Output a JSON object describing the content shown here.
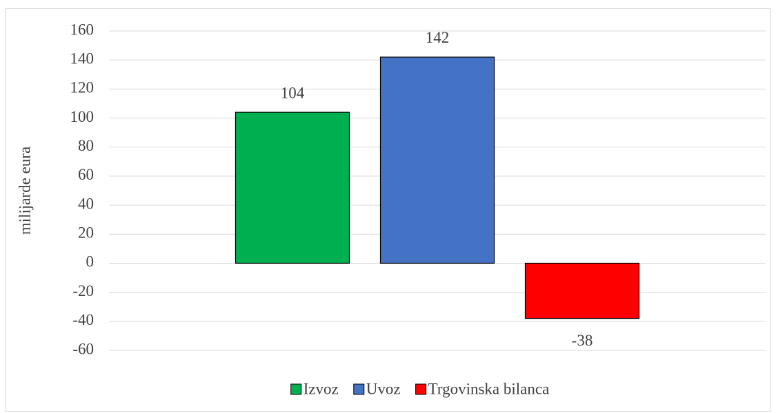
{
  "chart_data": {
    "type": "bar",
    "y_label": "milijarde eura",
    "categories": [
      null
    ],
    "series": [
      {
        "name": "Izvoz",
        "color": "#00b050",
        "values": [
          104
        ]
      },
      {
        "name": "Uvoz",
        "color": "#4472c4",
        "values": [
          142
        ]
      },
      {
        "name": "Trgovinska bilanca",
        "color": "#ff0000",
        "values": [
          -38
        ]
      }
    ],
    "ylim": [
      -60,
      160
    ],
    "yticks": [
      -60,
      -40,
      -20,
      0,
      20,
      40,
      60,
      80,
      100,
      120,
      140,
      160
    ],
    "grid": true,
    "legend": "bottom"
  }
}
